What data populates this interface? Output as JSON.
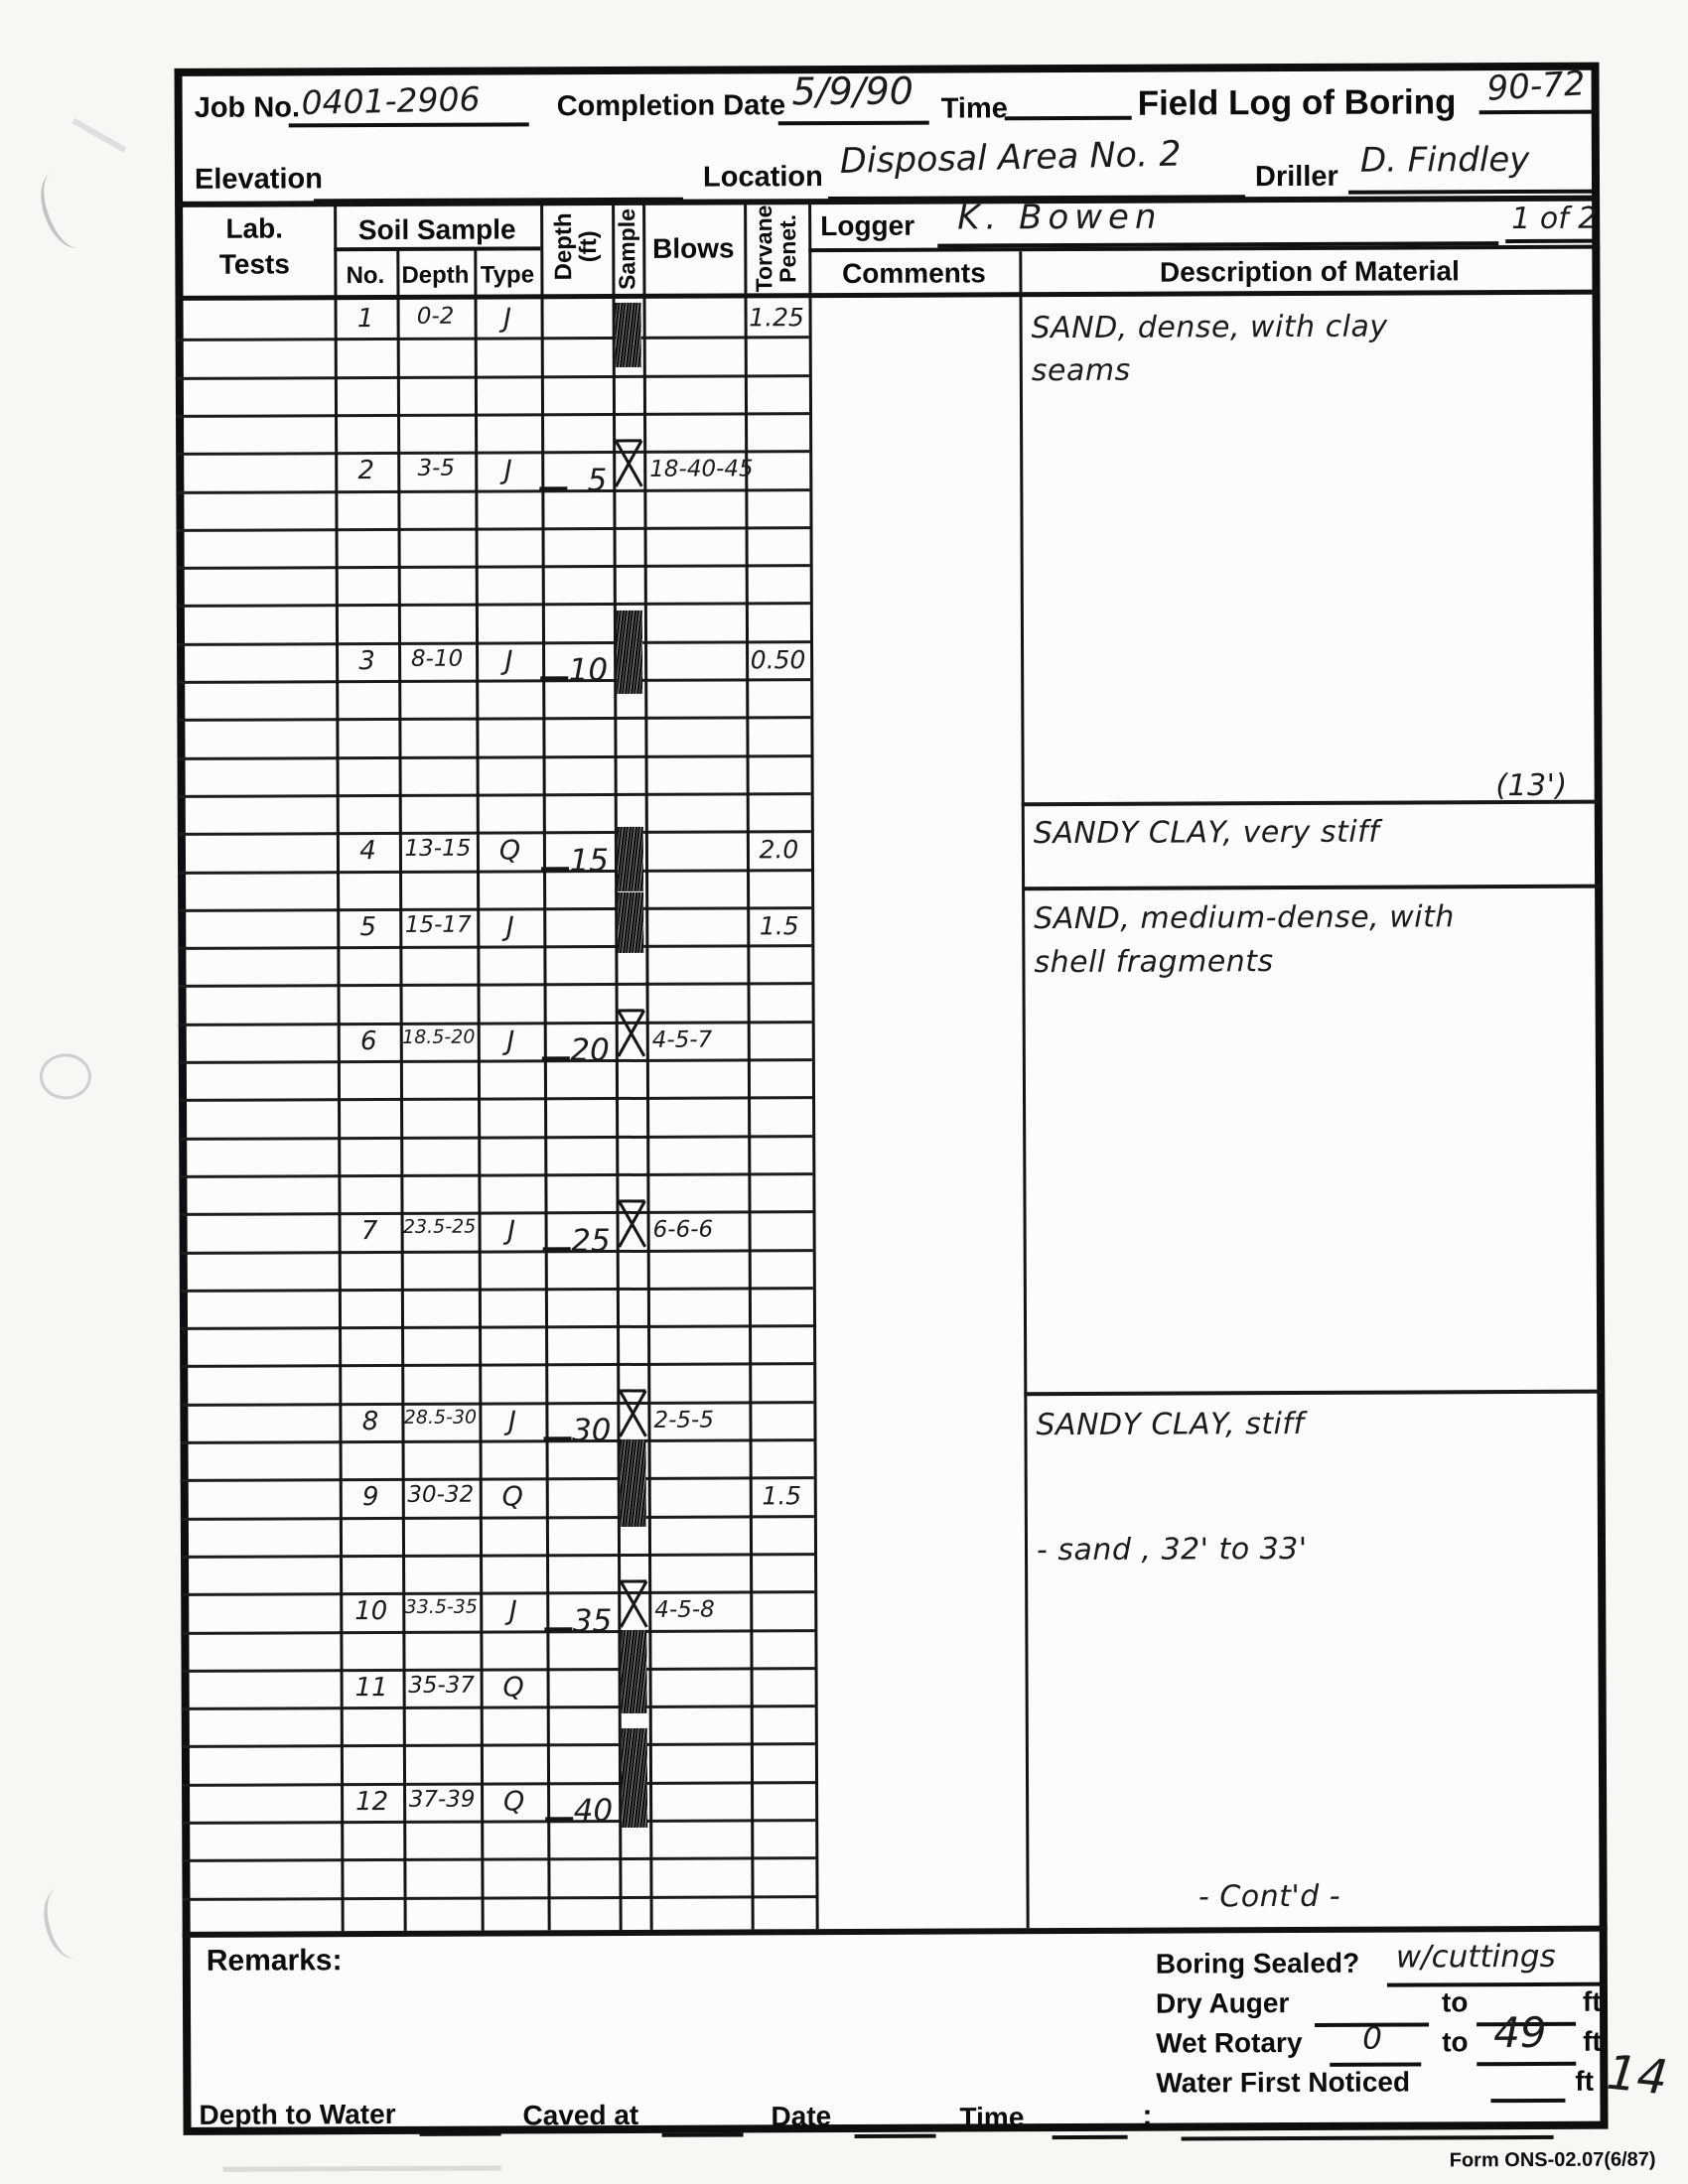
{
  "page": {
    "number": "14",
    "form_id": "Form ONS-02.07(6/87)"
  },
  "header": {
    "job_no_label": "Job No.",
    "job_no": "0401-2906",
    "completion_date_label": "Completion Date",
    "completion_date": "5/9/90",
    "time_label": "Time",
    "title": "Field Log of Boring",
    "boring_no": "90-72",
    "elevation_label": "Elevation",
    "location_label": "Location",
    "location": "Disposal Area No. 2",
    "driller_label": "Driller",
    "driller": "D. Findley",
    "logger_label": "Logger",
    "logger": "K. Bowen",
    "page_of": "1 of 2"
  },
  "table": {
    "col_lab_line1": "Lab.",
    "col_lab_line2": "Tests",
    "col_soil_sample": "Soil Sample",
    "col_no": "No.",
    "col_depth": "Depth",
    "col_type": "Type",
    "col_depth_ft": "Depth (ft)",
    "col_sample": "Sample",
    "col_blows": "Blows",
    "col_torvane": "Torvane Penet.",
    "col_comments": "Comments",
    "col_description": "Description of Material"
  },
  "samples": [
    {
      "no": "1",
      "depth": "0-2",
      "type": "J",
      "row_ft": 0,
      "marker": "hatch",
      "hatch_ft": [
        0.1,
        1.8
      ],
      "torvane": "1.25"
    },
    {
      "no": "2",
      "depth": "3-5",
      "type": "J",
      "row_ft": 4,
      "depth_label": "5",
      "marker": "bowtie",
      "blows": "18-40-45"
    },
    {
      "no": "3",
      "depth": "8-10",
      "type": "J",
      "row_ft": 9,
      "depth_label": "10",
      "marker": "hatch",
      "hatch_ft": [
        8.2,
        10.4
      ],
      "torvane": "0.50"
    },
    {
      "no": "4",
      "depth": "13-15",
      "type": "Q",
      "row_ft": 14,
      "depth_label": "15",
      "marker": "hatch",
      "hatch_ft": [
        13.9,
        15.6
      ],
      "torvane": "2.0"
    },
    {
      "no": "5",
      "depth": "15-17",
      "type": "J",
      "row_ft": 16,
      "marker": "hatch",
      "hatch_ft": [
        15.6,
        17.2
      ],
      "torvane": "1.5"
    },
    {
      "no": "6",
      "depth": "18.5-20",
      "type": "J",
      "row_ft": 19,
      "depth_label": "20",
      "marker": "bowtie",
      "blows": "4-5-7"
    },
    {
      "no": "7",
      "depth": "23.5-25",
      "type": "J",
      "row_ft": 24,
      "depth_label": "25",
      "marker": "bowtie",
      "blows": "6-6-6"
    },
    {
      "no": "8",
      "depth": "28.5-30",
      "type": "J",
      "row_ft": 29,
      "depth_label": "30",
      "marker": "bowtie",
      "blows": "2-5-5"
    },
    {
      "no": "9",
      "depth": "30-32",
      "type": "Q",
      "row_ft": 31,
      "marker": "hatch",
      "hatch_ft": [
        30.0,
        32.3
      ],
      "torvane": "1.5"
    },
    {
      "no": "10",
      "depth": "33.5-35",
      "type": "J",
      "row_ft": 34,
      "depth_label": "35",
      "marker": "bowtie",
      "blows": "4-5-8"
    },
    {
      "no": "11",
      "depth": "35-37",
      "type": "Q",
      "row_ft": 36,
      "marker": "hatch",
      "hatch_ft": [
        35.0,
        37.2
      ]
    },
    {
      "no": "12",
      "depth": "37-39",
      "type": "Q",
      "row_ft": 39,
      "depth_label": "40",
      "marker": "hatch",
      "hatch_ft": [
        37.6,
        40.2
      ]
    }
  ],
  "strata": [
    {
      "ft": 0.25,
      "text": "SAND, dense, with clay\nseams"
    },
    {
      "ft": 12.35,
      "text": "(13')",
      "align": "right"
    },
    {
      "ft": 13.3,
      "divider": true
    },
    {
      "ft": 13.55,
      "text": "SANDY CLAY, very stiff"
    },
    {
      "ft": 15.5,
      "divider": true
    },
    {
      "ft": 15.8,
      "text": "SAND, medium-dense, with\nshell fragments"
    },
    {
      "ft": 28.8,
      "divider": true
    },
    {
      "ft": 29.1,
      "text": "SANDY CLAY, stiff"
    },
    {
      "ft": 32.4,
      "text": "- sand , 32' to 33'"
    },
    {
      "ft": 41.55,
      "text": "- Cont'd -",
      "align": "center"
    }
  ],
  "remarks": {
    "label": "Remarks:",
    "boring_sealed_label": "Boring Sealed?",
    "boring_sealed": "w/cuttings",
    "dry_auger_label": "Dry Auger",
    "to_label": "to",
    "ft_label": "ft",
    "wet_rotary_label": "Wet Rotary",
    "wet_rotary_from": "0",
    "wet_rotary_to": "49",
    "water_first_label": "Water First Noticed",
    "depth_to_water_label": "Depth to Water",
    "caved_at_label": "Caved at",
    "date_label": "Date",
    "time_label": "Time",
    "semicolon": ";"
  }
}
